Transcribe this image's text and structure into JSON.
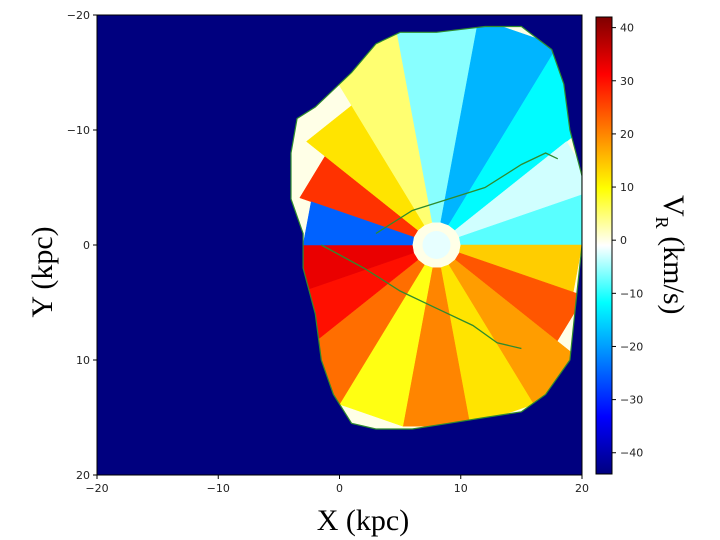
{
  "chart_data": {
    "type": "heatmap",
    "title": "",
    "xlabel": "X (kpc)",
    "ylabel": "Y (kpc)",
    "xlim": [
      -20,
      20
    ],
    "ylim": [
      -20,
      20
    ],
    "y_inverted": true,
    "x_ticks": [
      -20,
      -10,
      0,
      10,
      20
    ],
    "y_ticks": [
      -20,
      -10,
      0,
      10,
      20
    ],
    "x_tick_labels": [
      "−20",
      "−10",
      "0",
      "10",
      "20"
    ],
    "y_tick_labels": [
      "−20",
      "−10",
      "0",
      "10",
      "20"
    ],
    "background_value": -44,
    "colorbar": {
      "label_main": "V",
      "label_sub": "R",
      "label_unit": " (km/s)",
      "range": [
        -44,
        42
      ],
      "ticks": [
        40,
        30,
        20,
        10,
        0,
        -10,
        -20,
        -30,
        -40
      ],
      "tick_labels": [
        "40",
        "30",
        "20",
        "10",
        "0",
        "−10",
        "−20",
        "−30",
        "−40"
      ],
      "colormap": "jet"
    },
    "coverage": {
      "boundary_polygon": [
        [
          -3.5,
          -11
        ],
        [
          -2,
          -12
        ],
        [
          1,
          -15
        ],
        [
          3,
          -17.5
        ],
        [
          5,
          -18.5
        ],
        [
          8,
          -18.5
        ],
        [
          12,
          -19
        ],
        [
          15,
          -19
        ],
        [
          17.5,
          -17
        ],
        [
          18.5,
          -14
        ],
        [
          19,
          -10
        ],
        [
          20,
          -6
        ],
        [
          20,
          0
        ],
        [
          19.5,
          5
        ],
        [
          19,
          10
        ],
        [
          17,
          13
        ],
        [
          15,
          14.5
        ],
        [
          12,
          15
        ],
        [
          9,
          15.5
        ],
        [
          6,
          16
        ],
        [
          3,
          16
        ],
        [
          1,
          15.5
        ],
        [
          -0.5,
          13
        ],
        [
          -1.5,
          10
        ],
        [
          -2,
          6
        ],
        [
          -3,
          2
        ],
        [
          -3,
          -1
        ],
        [
          -4,
          -4
        ],
        [
          -4,
          -8
        ]
      ],
      "colormap_note": "Map colored by mean V_R within galactocentric azimuth/radius bins"
    },
    "sectors": [
      {
        "theta": -150,
        "r0": 2,
        "r1": 12,
        "value": 27
      },
      {
        "theta": -130,
        "r0": 2,
        "r1": 14,
        "value": 12
      },
      {
        "theta": -110,
        "r0": 2,
        "r1": 20,
        "value": 5
      },
      {
        "theta": -90,
        "r0": 2,
        "r1": 20,
        "value": -6
      },
      {
        "theta": -70,
        "r0": 2,
        "r1": 20,
        "value": -18
      },
      {
        "theta": -50,
        "r0": 2,
        "r1": 20,
        "value": -12
      },
      {
        "theta": -30,
        "r0": 2,
        "r1": 14,
        "value": -3
      },
      {
        "theta": -10,
        "r0": 2,
        "r1": 14,
        "value": -8
      },
      {
        "theta": 10,
        "r0": 2,
        "r1": 12,
        "value": 14
      },
      {
        "theta": 30,
        "r0": 2,
        "r1": 13,
        "value": 24
      },
      {
        "theta": 50,
        "r0": 2,
        "r1": 16,
        "value": 18
      },
      {
        "theta": 70,
        "r0": 2,
        "r1": 16,
        "value": 12
      },
      {
        "theta": 90,
        "r0": 2,
        "r1": 16,
        "value": 20
      },
      {
        "theta": 110,
        "r0": 2,
        "r1": 16,
        "value": 9
      },
      {
        "theta": 130,
        "r0": 2,
        "r1": 16,
        "value": 22
      },
      {
        "theta": 150,
        "r0": 2,
        "r1": 13,
        "value": 30
      },
      {
        "theta": 170,
        "r0": 2,
        "r1": 12,
        "value": 33
      },
      {
        "theta": -170,
        "r0": 2,
        "r1": 11,
        "value": -25
      }
    ],
    "center": [
      8,
      0
    ],
    "annotations": {
      "upper_contour": [
        [
          3,
          -1
        ],
        [
          6,
          -3
        ],
        [
          9,
          -4
        ],
        [
          12,
          -5
        ],
        [
          15,
          -7
        ],
        [
          17,
          -8
        ],
        [
          18,
          -7.5
        ]
      ],
      "lower_contour": [
        [
          -1.5,
          0
        ],
        [
          2,
          2
        ],
        [
          5,
          4
        ],
        [
          8,
          5.5
        ],
        [
          11,
          7
        ],
        [
          13,
          8.5
        ],
        [
          15,
          9
        ]
      ]
    }
  }
}
